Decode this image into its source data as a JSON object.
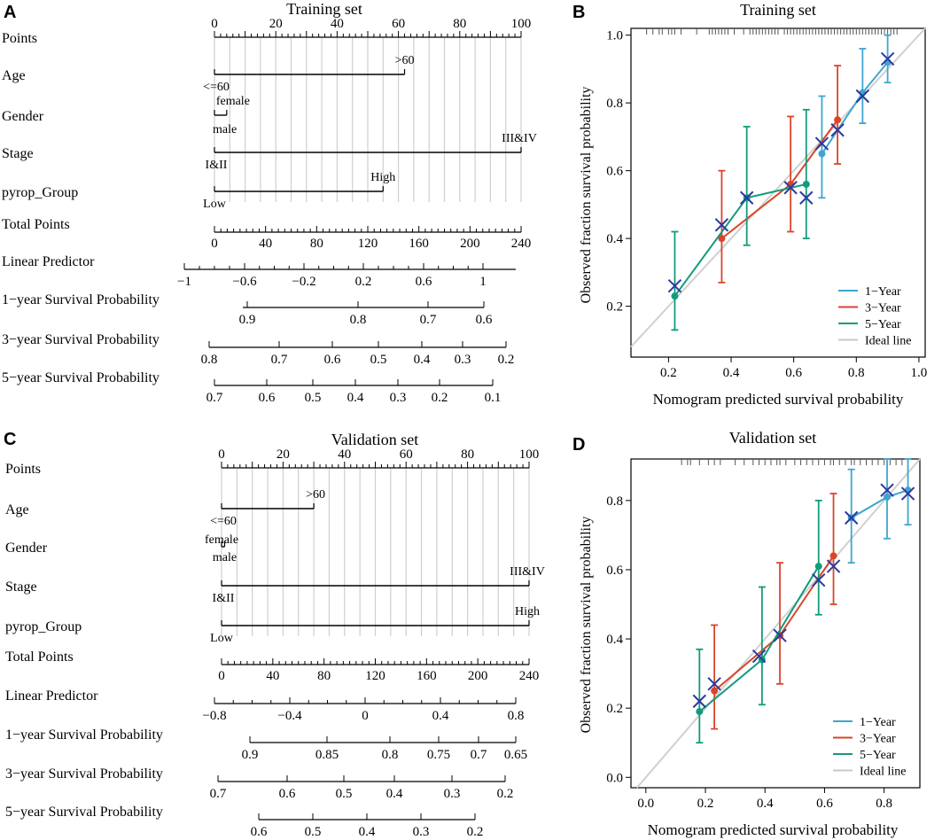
{
  "panel_letters": [
    "A",
    "B",
    "C",
    "D"
  ],
  "chart_data": [
    {
      "type": "nomogram",
      "panel": "A",
      "title": "Training set",
      "points_axis": {
        "min": 0,
        "max": 100,
        "labels": [
          "0",
          "20",
          "40",
          "60",
          "80",
          "100"
        ]
      },
      "variables": [
        {
          "name": "Points"
        },
        {
          "name": "Age",
          "levels": [
            {
              "label": "<=60",
              "points": 0
            },
            {
              "label": ">60",
              "points": 62
            }
          ]
        },
        {
          "name": "Gender",
          "levels": [
            {
              "label": "male",
              "points": 0
            },
            {
              "label": "female",
              "points": 4
            }
          ]
        },
        {
          "name": "Stage",
          "levels": [
            {
              "label": "I&II",
              "points": 0
            },
            {
              "label": "III&IV",
              "points": 100
            }
          ]
        },
        {
          "name": "pyrop_Group",
          "levels": [
            {
              "label": "Low",
              "points": 0
            },
            {
              "label": "High",
              "points": 55
            }
          ]
        }
      ],
      "total_points": {
        "label": "Total Points",
        "min": 0,
        "max": 240,
        "ticks": [
          "0",
          "40",
          "80",
          "120",
          "160",
          "200",
          "240"
        ]
      },
      "linear_predictor": {
        "label": "Linear Predictor",
        "ticks": [
          "−1",
          "−0.6",
          "−0.2",
          "0.2",
          "0.6",
          "1"
        ]
      },
      "survival_scales": [
        {
          "label": "1−year Survival Probability",
          "ticks": [
            "0.9",
            "0.8",
            "0.7",
            "0.6"
          ]
        },
        {
          "label": "3−year Survival Probability",
          "ticks": [
            "0.8",
            "0.7",
            "0.6",
            "0.5",
            "0.4",
            "0.3",
            "0.2"
          ]
        },
        {
          "label": "5−year Survival Probability",
          "ticks": [
            "0.7",
            "0.6",
            "0.5",
            "0.4",
            "0.3",
            "0.2",
            "0.1"
          ]
        }
      ]
    },
    {
      "type": "calibration",
      "panel": "B",
      "title": "Training set",
      "xlabel": "Nomogram predicted survival probability",
      "ylabel": "Observed fraction survival probability",
      "xlim": [
        0.08,
        1.02
      ],
      "ylim": [
        0.05,
        1.02
      ],
      "xticks": [
        0.2,
        0.4,
        0.6,
        0.8,
        1.0
      ],
      "xtick_labels": [
        "0.2",
        "0.4",
        "0.6",
        "0.8",
        "1.0"
      ],
      "yticks": [
        0.2,
        0.4,
        0.6,
        0.8,
        1.0
      ],
      "ytick_labels": [
        "0.2",
        "0.4",
        "0.6",
        "0.8",
        "1.0"
      ],
      "legend": {
        "position": "bottom-right",
        "entries": [
          "1−Year",
          "3−Year",
          "5−Year",
          "Ideal line"
        ]
      },
      "series": [
        {
          "name": "1−Year",
          "color": "#3fa5cf",
          "points": [
            {
              "x": 0.69,
              "y": 0.65,
              "lo": 0.52,
              "hi": 0.82
            },
            {
              "x": 0.82,
              "y": 0.83,
              "lo": 0.74,
              "hi": 0.96
            },
            {
              "x": 0.9,
              "y": 0.92,
              "lo": 0.86,
              "hi": 1.0
            }
          ]
        },
        {
          "name": "3−Year",
          "color": "#d9452b",
          "points": [
            {
              "x": 0.37,
              "y": 0.4,
              "lo": 0.27,
              "hi": 0.6
            },
            {
              "x": 0.59,
              "y": 0.56,
              "lo": 0.42,
              "hi": 0.76
            },
            {
              "x": 0.74,
              "y": 0.75,
              "lo": 0.62,
              "hi": 0.91
            }
          ]
        },
        {
          "name": "5−Year",
          "color": "#139b7b",
          "points": [
            {
              "x": 0.22,
              "y": 0.23,
              "lo": 0.13,
              "hi": 0.42
            },
            {
              "x": 0.45,
              "y": 0.52,
              "lo": 0.38,
              "hi": 0.73
            },
            {
              "x": 0.64,
              "y": 0.56,
              "lo": 0.4,
              "hi": 0.78
            }
          ]
        }
      ],
      "km_estimates": [
        {
          "x": 0.22,
          "y": 0.26
        },
        {
          "x": 0.37,
          "y": 0.44
        },
        {
          "x": 0.45,
          "y": 0.52
        },
        {
          "x": 0.59,
          "y": 0.55
        },
        {
          "x": 0.64,
          "y": 0.52
        },
        {
          "x": 0.69,
          "y": 0.68
        },
        {
          "x": 0.74,
          "y": 0.72
        },
        {
          "x": 0.82,
          "y": 0.82
        },
        {
          "x": 0.9,
          "y": 0.93
        }
      ],
      "rug": [
        0.13,
        0.15,
        0.17,
        0.18,
        0.2,
        0.21,
        0.22,
        0.24,
        0.29,
        0.33,
        0.34,
        0.35,
        0.36,
        0.37,
        0.38,
        0.39,
        0.41,
        0.44,
        0.46,
        0.47,
        0.48,
        0.49,
        0.5,
        0.51,
        0.52,
        0.53,
        0.54,
        0.55,
        0.57,
        0.58,
        0.59,
        0.6,
        0.61,
        0.62,
        0.63,
        0.64,
        0.65,
        0.66,
        0.67,
        0.68,
        0.69,
        0.7,
        0.71,
        0.72,
        0.73,
        0.74,
        0.75,
        0.76,
        0.77,
        0.78,
        0.79,
        0.8,
        0.81,
        0.82,
        0.83,
        0.84,
        0.85,
        0.86,
        0.87,
        0.88,
        0.89,
        0.9,
        0.91,
        0.92,
        0.93
      ]
    },
    {
      "type": "nomogram",
      "panel": "C",
      "title": "Validation set",
      "points_axis": {
        "min": 0,
        "max": 100,
        "labels": [
          "0",
          "20",
          "40",
          "60",
          "80",
          "100"
        ]
      },
      "variables": [
        {
          "name": "Points"
        },
        {
          "name": "Age",
          "levels": [
            {
              "label": "<=60",
              "points": 0
            },
            {
              "label": ">60",
              "points": 30
            }
          ]
        },
        {
          "name": "Gender",
          "levels": [
            {
              "label": "female",
              "points": 0
            },
            {
              "label": "male",
              "points": 1
            }
          ]
        },
        {
          "name": "Stage",
          "levels": [
            {
              "label": "I&II",
              "points": 0
            },
            {
              "label": "III&IV",
              "points": 100
            }
          ]
        },
        {
          "name": "pyrop_Group",
          "levels": [
            {
              "label": "Low",
              "points": 0
            },
            {
              "label": "High",
              "points": 100
            }
          ]
        }
      ],
      "total_points": {
        "label": "Total Points",
        "min": 0,
        "max": 240,
        "ticks": [
          "0",
          "40",
          "80",
          "120",
          "160",
          "200",
          "240"
        ]
      },
      "linear_predictor": {
        "label": "Linear Predictor",
        "ticks": [
          "−0.8",
          "−0.4",
          "0",
          "0.4",
          "0.8"
        ]
      },
      "survival_scales": [
        {
          "label": "1−year Survival Probability",
          "ticks": [
            "0.9",
            "0.85",
            "0.8",
            "0.75",
            "0.7",
            "0.65"
          ]
        },
        {
          "label": "3−year Survival Probability",
          "ticks": [
            "0.7",
            "0.6",
            "0.5",
            "0.4",
            "0.3",
            "0.2"
          ]
        },
        {
          "label": "5−year Survival Probability",
          "ticks": [
            "0.6",
            "0.5",
            "0.4",
            "0.3",
            "0.2"
          ]
        }
      ]
    },
    {
      "type": "calibration",
      "panel": "D",
      "title": "Validation set",
      "xlabel": "Nomogram predicted survival probability",
      "ylabel": "Observed fraction survival probability",
      "xlim": [
        -0.05,
        0.92
      ],
      "ylim": [
        -0.03,
        0.92
      ],
      "xticks": [
        0.0,
        0.2,
        0.4,
        0.6,
        0.8
      ],
      "xtick_labels": [
        "0.0",
        "0.2",
        "0.4",
        "0.6",
        "0.8"
      ],
      "yticks": [
        0.0,
        0.2,
        0.4,
        0.6,
        0.8
      ],
      "ytick_labels": [
        "0.0",
        "0.2",
        "0.4",
        "0.6",
        "0.8"
      ],
      "legend": {
        "position": "bottom-right",
        "entries": [
          "1−Year",
          "3−Year",
          "5−Year",
          "Ideal line"
        ]
      },
      "series": [
        {
          "name": "1−Year",
          "color": "#3fa5cf",
          "points": [
            {
              "x": 0.69,
              "y": 0.75,
              "lo": 0.62,
              "hi": 0.89
            },
            {
              "x": 0.81,
              "y": 0.81,
              "lo": 0.69,
              "hi": 0.92
            },
            {
              "x": 0.88,
              "y": 0.83,
              "lo": 0.73,
              "hi": 0.92
            }
          ]
        },
        {
          "name": "3−Year",
          "color": "#d9452b",
          "points": [
            {
              "x": 0.23,
              "y": 0.25,
              "lo": 0.14,
              "hi": 0.44
            },
            {
              "x": 0.45,
              "y": 0.41,
              "lo": 0.27,
              "hi": 0.62
            },
            {
              "x": 0.63,
              "y": 0.64,
              "lo": 0.5,
              "hi": 0.82
            }
          ]
        },
        {
          "name": "5−Year",
          "color": "#139b7b",
          "points": [
            {
              "x": 0.18,
              "y": 0.19,
              "lo": 0.1,
              "hi": 0.37
            },
            {
              "x": 0.39,
              "y": 0.34,
              "lo": 0.21,
              "hi": 0.55
            },
            {
              "x": 0.58,
              "y": 0.61,
              "lo": 0.47,
              "hi": 0.8
            }
          ]
        }
      ],
      "km_estimates": [
        {
          "x": 0.18,
          "y": 0.22
        },
        {
          "x": 0.23,
          "y": 0.27
        },
        {
          "x": 0.38,
          "y": 0.35
        },
        {
          "x": 0.45,
          "y": 0.41
        },
        {
          "x": 0.58,
          "y": 0.57
        },
        {
          "x": 0.63,
          "y": 0.61
        },
        {
          "x": 0.69,
          "y": 0.75
        },
        {
          "x": 0.81,
          "y": 0.83
        },
        {
          "x": 0.88,
          "y": 0.82
        }
      ],
      "rug": [
        0.12,
        0.14,
        0.15,
        0.18,
        0.21,
        0.23,
        0.25,
        0.3,
        0.33,
        0.36,
        0.38,
        0.4,
        0.42,
        0.44,
        0.45,
        0.47,
        0.5,
        0.52,
        0.54,
        0.56,
        0.58,
        0.6,
        0.62,
        0.63,
        0.65,
        0.67,
        0.69,
        0.7,
        0.72,
        0.74,
        0.76,
        0.78,
        0.8,
        0.82,
        0.84,
        0.86,
        0.88
      ]
    }
  ]
}
